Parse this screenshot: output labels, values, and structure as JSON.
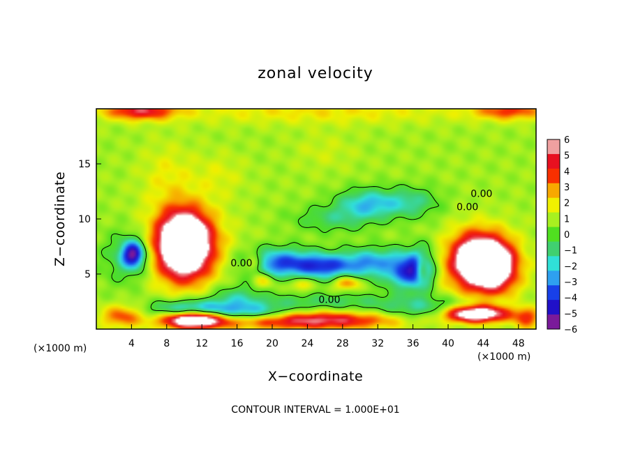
{
  "chart_data": {
    "type": "heatmap",
    "title": "zonal velocity",
    "xlabel": "X−coordinate",
    "ylabel": "Z−coordinate",
    "x_unit_left": "(×1000 m)",
    "x_unit_right": "(×1000 m)",
    "xlim": [
      0,
      50
    ],
    "ylim": [
      0,
      20
    ],
    "xticks": [
      4,
      8,
      12,
      16,
      20,
      24,
      28,
      32,
      36,
      40,
      44,
      48
    ],
    "yticks": [
      5,
      10,
      15
    ],
    "colorbar": {
      "min": -6,
      "max": 6,
      "ticks": [
        6,
        5,
        4,
        3,
        2,
        1,
        0,
        -1,
        -2,
        -3,
        -4,
        -5,
        -6
      ],
      "tick_labels": [
        "6",
        "5",
        "4",
        "3",
        "2",
        "1",
        "0",
        "−1",
        "−2",
        "−3",
        "−4",
        "−5",
        "−6"
      ],
      "colors": [
        "#7a1a9a",
        "#2010c8",
        "#1840e8",
        "#2ea0f0",
        "#30e0d8",
        "#40d070",
        "#50e020",
        "#a8f020",
        "#f0f000",
        "#f8a800",
        "#f83000",
        "#e81020",
        "#f0a0a0"
      ]
    },
    "contour_labels": [
      {
        "text": "0.00",
        "x": 26.5,
        "y": 2.7
      },
      {
        "text": "0.00",
        "x": 16.5,
        "y": 6.0
      },
      {
        "text": "0.00",
        "x": 43.8,
        "y": 12.3
      },
      {
        "text": "0.00",
        "x": 42.2,
        "y": 11.1
      }
    ],
    "features": [
      {
        "x": 4.2,
        "y": 6.8,
        "sx": 1.3,
        "sy": 1.2,
        "v": -6
      },
      {
        "x": 10,
        "y": 7.8,
        "sx": 2.6,
        "sy": 2.6,
        "v": 8
      },
      {
        "x": 10,
        "y": 7.5,
        "sx": 4.2,
        "sy": 3.6,
        "v": 4
      },
      {
        "x": 25,
        "y": 19.8,
        "sx": 18,
        "sy": 1.2,
        "v": 1.3
      },
      {
        "x": 5,
        "y": 19.8,
        "sx": 4,
        "sy": 0.8,
        "v": 4
      },
      {
        "x": 47,
        "y": 19.8,
        "sx": 4,
        "sy": 0.8,
        "v": 3
      },
      {
        "x": 26,
        "y": 16.2,
        "sx": 3.5,
        "sy": 1.7,
        "v": 0.6
      },
      {
        "x": 31,
        "y": 11.4,
        "sx": 3.5,
        "sy": 1.3,
        "v": -3.3
      },
      {
        "x": 36,
        "y": 11.5,
        "sx": 3,
        "sy": 1.4,
        "v": -2
      },
      {
        "x": 27,
        "y": 10,
        "sx": 4.5,
        "sy": 1.2,
        "v": -1.7
      },
      {
        "x": 21,
        "y": 6,
        "sx": 4,
        "sy": 1.3,
        "v": -4.8
      },
      {
        "x": 26,
        "y": 5.7,
        "sx": 3,
        "sy": 1.1,
        "v": -4.2
      },
      {
        "x": 31,
        "y": 6,
        "sx": 3.3,
        "sy": 1.3,
        "v": -3.8
      },
      {
        "x": 35,
        "y": 5.3,
        "sx": 2.2,
        "sy": 1.6,
        "v": -4.6
      },
      {
        "x": 37,
        "y": 5.5,
        "sx": 1.3,
        "sy": 1.8,
        "v": -5.5
      },
      {
        "x": 19,
        "y": 4.4,
        "sx": 1.2,
        "sy": 0.7,
        "v": 2
      },
      {
        "x": 23.3,
        "y": 4.1,
        "sx": 1.2,
        "sy": 0.6,
        "v": 2
      },
      {
        "x": 28.5,
        "y": 4.2,
        "sx": 1.4,
        "sy": 0.6,
        "v": 3
      },
      {
        "x": 37,
        "y": 5.5,
        "sx": 0.8,
        "sy": 1.3,
        "v": 5
      },
      {
        "x": 33.5,
        "y": 5.6,
        "sx": 1,
        "sy": 0.7,
        "v": 1
      },
      {
        "x": 18,
        "y": 6,
        "sx": 1,
        "sy": 0.8,
        "v": 3
      },
      {
        "x": 43,
        "y": 6.3,
        "sx": 2.7,
        "sy": 2.3,
        "v": 6.5
      },
      {
        "x": 45.5,
        "y": 5.8,
        "sx": 2.3,
        "sy": 2.2,
        "v": 5.5
      },
      {
        "x": 44,
        "y": 5.5,
        "sx": 4.5,
        "sy": 3.4,
        "v": 2
      },
      {
        "x": 3.5,
        "y": 6.5,
        "sx": 3,
        "sy": 2.5,
        "v": -1.7
      },
      {
        "x": 43,
        "y": 1.4,
        "sx": 4,
        "sy": 0.8,
        "v": 9
      },
      {
        "x": 40,
        "y": 1.6,
        "sx": 7,
        "sy": 1.1,
        "v": -3.2
      },
      {
        "x": 24,
        "y": 0.8,
        "sx": 11,
        "sy": 0.8,
        "v": 5
      },
      {
        "x": 18,
        "y": 1.4,
        "sx": 4.5,
        "sy": 0.8,
        "v": -3.2
      },
      {
        "x": 11,
        "y": 0.9,
        "sx": 3.5,
        "sy": 0.8,
        "v": 8
      },
      {
        "x": 11,
        "y": 1.7,
        "sx": 5,
        "sy": 0.9,
        "v": -4.5
      },
      {
        "x": 3,
        "y": 1.2,
        "sx": 2.5,
        "sy": 1,
        "v": 3
      },
      {
        "x": 16,
        "y": 3,
        "sx": 3,
        "sy": 1.2,
        "v": -1.8
      },
      {
        "x": 26,
        "y": 2.5,
        "sx": 10,
        "sy": 0.8,
        "v": -1.6
      },
      {
        "x": 49,
        "y": 1,
        "sx": 1.5,
        "sy": 1,
        "v": 3
      },
      {
        "x": 8,
        "y": 14,
        "sx": 3,
        "sy": 3,
        "v": 1
      },
      {
        "x": 14,
        "y": 14,
        "sx": 3,
        "sy": 2,
        "v": 0.8
      }
    ]
  },
  "footer_text": "CONTOUR INTERVAL = 1.000E+01"
}
